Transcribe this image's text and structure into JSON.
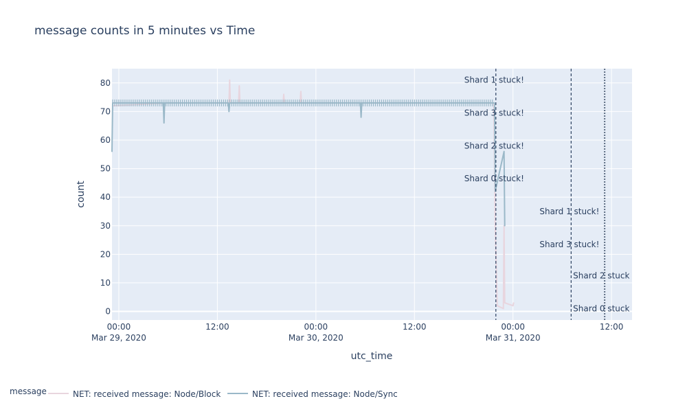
{
  "chart_data": {
    "type": "line",
    "title": "message counts in 5 minutes vs Time",
    "xlabel": "utc_time",
    "ylabel": "count",
    "x_range": [
      "2020-03-28T23:10",
      "2020-03-31T14:30"
    ],
    "ylim": [
      -3,
      85
    ],
    "y_ticks": [
      0,
      10,
      20,
      30,
      40,
      50,
      60,
      70,
      80
    ],
    "x_ticks": [
      {
        "t": "2020-03-29T00:00",
        "line1": "00:00",
        "line2": "Mar 29, 2020"
      },
      {
        "t": "2020-03-29T12:00",
        "line1": "12:00",
        "line2": ""
      },
      {
        "t": "2020-03-30T00:00",
        "line1": "00:00",
        "line2": "Mar 30, 2020"
      },
      {
        "t": "2020-03-30T12:00",
        "line1": "12:00",
        "line2": ""
      },
      {
        "t": "2020-03-31T00:00",
        "line1": "00:00",
        "line2": "Mar 31, 2020"
      },
      {
        "t": "2020-03-31T12:00",
        "line1": "12:00",
        "line2": ""
      }
    ],
    "legend": {
      "title": "message",
      "placement": "bottom-left"
    },
    "series": [
      {
        "name": "NET: received message: Node/Block",
        "color": "#e8d5de",
        "points": [
          [
            "2020-03-28T23:15",
            72
          ],
          [
            "2020-03-29T06:00",
            73
          ],
          [
            "2020-03-29T10:00",
            73
          ],
          [
            "2020-03-29T13:25",
            73
          ],
          [
            "2020-03-29T13:30",
            81
          ],
          [
            "2020-03-29T13:35",
            73
          ],
          [
            "2020-03-29T14:35",
            73
          ],
          [
            "2020-03-29T14:40",
            79
          ],
          [
            "2020-03-29T14:45",
            73
          ],
          [
            "2020-03-29T20:00",
            73
          ],
          [
            "2020-03-29T20:05",
            76
          ],
          [
            "2020-03-29T20:10",
            73
          ],
          [
            "2020-03-29T22:05",
            73
          ],
          [
            "2020-03-29T22:10",
            77
          ],
          [
            "2020-03-29T22:15",
            73
          ],
          [
            "2020-03-30T12:00",
            73
          ],
          [
            "2020-03-30T21:40",
            73
          ],
          [
            "2020-03-30T21:50",
            30
          ],
          [
            "2020-03-30T22:05",
            2
          ],
          [
            "2020-03-30T22:50",
            1
          ],
          [
            "2020-03-30T22:55",
            30
          ],
          [
            "2020-03-30T23:00",
            3
          ],
          [
            "2020-03-31T00:00",
            2
          ],
          [
            "2020-03-31T00:05",
            3
          ]
        ]
      },
      {
        "name": "NET: received message: Node/Sync",
        "color": "#9ab8c8",
        "points": [
          [
            "2020-03-28T23:10",
            56
          ],
          [
            "2020-03-28T23:15",
            73
          ],
          [
            "2020-03-29T03:30",
            73
          ],
          [
            "2020-03-29T05:25",
            73
          ],
          [
            "2020-03-29T05:30",
            66
          ],
          [
            "2020-03-29T05:35",
            73
          ],
          [
            "2020-03-29T13:20",
            73
          ],
          [
            "2020-03-29T13:25",
            70
          ],
          [
            "2020-03-29T13:30",
            73
          ],
          [
            "2020-03-29T20:00",
            73
          ],
          [
            "2020-03-30T05:25",
            73
          ],
          [
            "2020-03-30T05:30",
            68
          ],
          [
            "2020-03-30T05:35",
            73
          ],
          [
            "2020-03-30T15:00",
            73
          ],
          [
            "2020-03-30T21:45",
            73
          ],
          [
            "2020-03-30T21:50",
            42
          ],
          [
            "2020-03-30T22:55",
            56
          ],
          [
            "2020-03-30T23:00",
            30
          ]
        ]
      }
    ],
    "annotations": [
      {
        "t": "2020-03-30T21:55",
        "style": "dash",
        "labels": [
          "Shard 1 stuck!",
          "Shard 3 stuck!",
          "Shard 2 stuck!",
          "Shard 0 stuck!"
        ],
        "label_y": [
          81,
          69.5,
          58,
          46.5
        ]
      },
      {
        "t": "2020-03-31T07:05",
        "style": "dash",
        "labels": [
          "Shard 1 stuck!",
          "Shard 3 stuck!"
        ],
        "label_y": [
          35,
          23.5
        ]
      },
      {
        "t": "2020-03-31T11:10",
        "style": "dot",
        "labels": [
          "Shard 2 stuck",
          "Shard 0 stuck"
        ],
        "label_y": [
          12.5,
          1
        ]
      }
    ]
  }
}
